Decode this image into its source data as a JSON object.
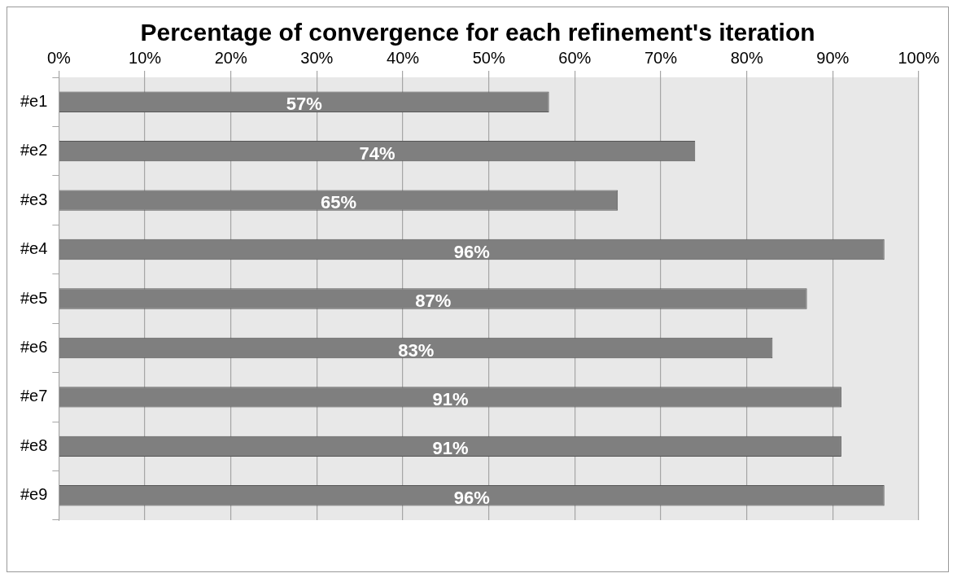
{
  "chart_data": {
    "type": "bar",
    "orientation": "horizontal",
    "title": "Percentage of convergence for each refinement's iteration",
    "categories": [
      "#e1",
      "#e2",
      "#e3",
      "#e4",
      "#e5",
      "#e6",
      "#e7",
      "#e8",
      "#e9"
    ],
    "values": [
      57,
      74,
      65,
      96,
      87,
      83,
      91,
      91,
      96
    ],
    "value_labels": [
      "57%",
      "74%",
      "65%",
      "96%",
      "87%",
      "83%",
      "91%",
      "91%",
      "96%"
    ],
    "color": "#7f7f7f",
    "xlim": [
      0,
      100
    ],
    "xticks": [
      {
        "value": 0,
        "label": "0%"
      },
      {
        "value": 10,
        "label": "10%"
      },
      {
        "value": 20,
        "label": "20%"
      },
      {
        "value": 30,
        "label": "30%"
      },
      {
        "value": 40,
        "label": "40%"
      },
      {
        "value": 50,
        "label": "50%"
      },
      {
        "value": 60,
        "label": "60%"
      },
      {
        "value": 70,
        "label": "70%"
      },
      {
        "value": 80,
        "label": "80%"
      },
      {
        "value": 90,
        "label": "90%"
      },
      {
        "value": 100,
        "label": "100%"
      }
    ],
    "grid": "x",
    "legend": false
  }
}
